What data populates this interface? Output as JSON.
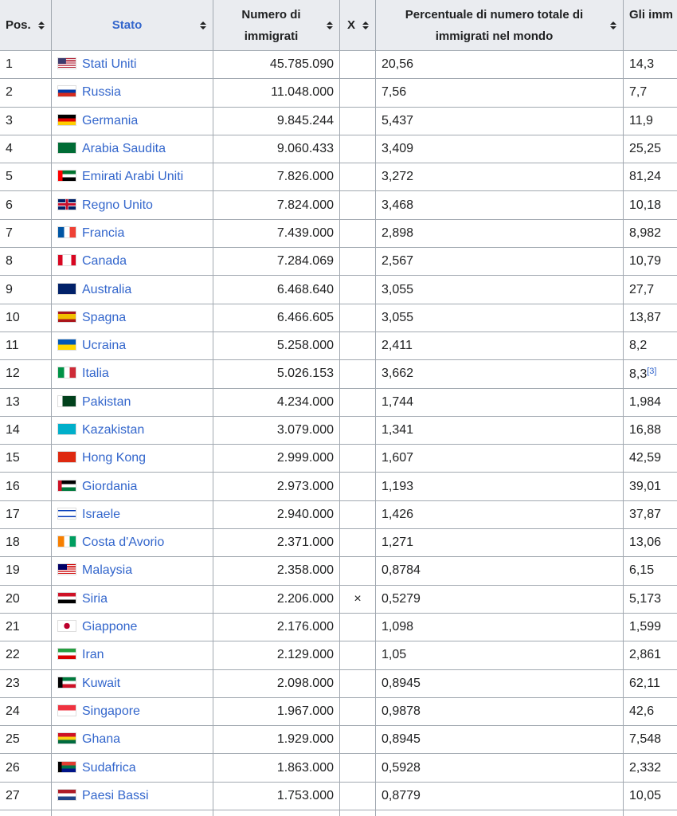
{
  "table": {
    "headers": [
      "Pos.",
      "Stato",
      "Numero di immigrati",
      "X",
      "Percentuale di numero totale di immigrati nel mondo",
      "Gli imm"
    ],
    "rows": [
      {
        "pos": "1",
        "stato": "Stati Uniti",
        "numero": "45.785.090",
        "perc": "20,56",
        "gli": "14,3"
      },
      {
        "pos": "2",
        "stato": "Russia",
        "numero": "11.048.000",
        "perc": "7,56",
        "gli": "7,7"
      },
      {
        "pos": "3",
        "stato": "Germania",
        "numero": "9.845.244",
        "perc": "5,437",
        "gli": "11,9"
      },
      {
        "pos": "4",
        "stato": "Arabia Saudita",
        "numero": "9.060.433",
        "perc": "3,409",
        "gli": "25,25"
      },
      {
        "pos": "5",
        "stato": "Emirati Arabi Uniti",
        "numero": "7.826.000",
        "perc": "3,272",
        "gli": "81,24"
      },
      {
        "pos": "6",
        "stato": "Regno Unito",
        "numero": "7.824.000",
        "perc": "3,468",
        "gli": "10,18"
      },
      {
        "pos": "7",
        "stato": "Francia",
        "numero": "7.439.000",
        "perc": "2,898",
        "gli": "8,982"
      },
      {
        "pos": "8",
        "stato": "Canada",
        "numero": "7.284.069",
        "perc": "2,567",
        "gli": "10,79"
      },
      {
        "pos": "9",
        "stato": "Australia",
        "numero": "6.468.640",
        "perc": "3,055",
        "gli": "27,7"
      },
      {
        "pos": "10",
        "stato": "Spagna",
        "numero": "6.466.605",
        "perc": "3,055",
        "gli": "13,87"
      },
      {
        "pos": "11",
        "stato": "Ucraina",
        "numero": "5.258.000",
        "perc": "2,411",
        "gli": "8,2"
      },
      {
        "pos": "12",
        "stato": "Italia",
        "numero": "5.026.153",
        "perc": "3,662",
        "gli": "8,3",
        "ref": "[3]"
      },
      {
        "pos": "13",
        "stato": "Pakistan",
        "numero": "4.234.000",
        "perc": "1,744",
        "gli": "1,984"
      },
      {
        "pos": "14",
        "stato": "Kazakistan",
        "numero": "3.079.000",
        "perc": "1,341",
        "gli": "16,88"
      },
      {
        "pos": "15",
        "stato": "Hong Kong",
        "numero": "2.999.000",
        "perc": "1,607",
        "gli": "42,59"
      },
      {
        "pos": "16",
        "stato": "Giordania",
        "numero": "2.973.000",
        "perc": "1,193",
        "gli": "39,01"
      },
      {
        "pos": "17",
        "stato": "Israele",
        "numero": "2.940.000",
        "perc": "1,426",
        "gli": "37,87"
      },
      {
        "pos": "18",
        "stato": "Costa d'Avorio",
        "numero": "2.371.000",
        "perc": "1,271",
        "gli": "13,06"
      },
      {
        "pos": "19",
        "stato": "Malaysia",
        "numero": "2.358.000",
        "perc": "0,8784",
        "gli": "6,15"
      },
      {
        "pos": "20",
        "stato": "Siria",
        "numero": "2.206.000",
        "x": "×",
        "perc": "0,5279",
        "gli": "5,173"
      },
      {
        "pos": "21",
        "stato": "Giappone",
        "numero": "2.176.000",
        "perc": "1,098",
        "gli": "1,599"
      },
      {
        "pos": "22",
        "stato": "Iran",
        "numero": "2.129.000",
        "perc": "1,05",
        "gli": "2,861"
      },
      {
        "pos": "23",
        "stato": "Kuwait",
        "numero": "2.098.000",
        "perc": "0,8945",
        "gli": "62,11"
      },
      {
        "pos": "24",
        "stato": "Singapore",
        "numero": "1.967.000",
        "perc": "0,9878",
        "gli": "42,6"
      },
      {
        "pos": "25",
        "stato": "Ghana",
        "numero": "1.929.000",
        "perc": "0,8945",
        "gli": "7,548"
      },
      {
        "pos": "26",
        "stato": "Sudafrica",
        "numero": "1.863.000",
        "perc": "0,5928",
        "gli": "2,332"
      },
      {
        "pos": "27",
        "stato": "Paesi Bassi",
        "numero": "1.753.000",
        "perc": "0,8779",
        "gli": "10,05"
      }
    ]
  }
}
